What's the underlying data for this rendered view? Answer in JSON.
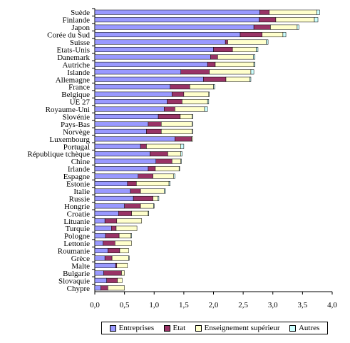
{
  "chart_data": {
    "type": "bar",
    "orientation": "horizontal",
    "stacked": true,
    "categories": [
      "Suède",
      "Finlande",
      "Japon",
      "Corée du Sud",
      "Suisse",
      "Etats-Unis",
      "Danemark",
      "Autriche",
      "Islande",
      "Allemagne",
      "France",
      "Belgique",
      "UE 27",
      "Royaume-Uni",
      "Slovénie",
      "Pays-Bas",
      "Norvège",
      "Luxembourg",
      "Portugal",
      "République tchèque",
      "Chine",
      "Irlande",
      "Espagne",
      "Estonie",
      "Italie",
      "Russie",
      "Hongrie",
      "Croatie",
      "Lituanie",
      "Turquie",
      "Pologne",
      "Lettonie",
      "Roumanie",
      "Grèce",
      "Malte",
      "Bulgarie",
      "Slovaquie",
      "Chypre"
    ],
    "series": [
      {
        "name": "Entreprises",
        "color": "#9999ff",
        "values": [
          2.78,
          2.77,
          2.68,
          2.45,
          2.2,
          2.0,
          1.95,
          1.9,
          1.45,
          1.83,
          1.27,
          1.3,
          1.22,
          1.17,
          1.07,
          0.9,
          0.87,
          1.35,
          0.77,
          0.93,
          1.03,
          0.9,
          0.73,
          0.55,
          0.6,
          0.65,
          0.5,
          0.4,
          0.17,
          0.28,
          0.18,
          0.14,
          0.22,
          0.17,
          0.35,
          0.15,
          0.2,
          0.1
        ]
      },
      {
        "name": "Etat",
        "color": "#993366",
        "values": [
          0.16,
          0.28,
          0.28,
          0.37,
          0.04,
          0.32,
          0.12,
          0.13,
          0.48,
          0.38,
          0.33,
          0.2,
          0.25,
          0.18,
          0.37,
          0.22,
          0.25,
          0.28,
          0.1,
          0.3,
          0.27,
          0.12,
          0.25,
          0.15,
          0.17,
          0.33,
          0.27,
          0.22,
          0.2,
          0.08,
          0.23,
          0.2,
          0.2,
          0.12,
          0.02,
          0.3,
          0.18,
          0.12
        ]
      },
      {
        "name": "Enseignement supérieur",
        "color": "#ffffcc",
        "values": [
          0.8,
          0.65,
          0.45,
          0.35,
          0.65,
          0.4,
          0.6,
          0.65,
          0.7,
          0.4,
          0.4,
          0.42,
          0.43,
          0.5,
          0.2,
          0.52,
          0.52,
          0.02,
          0.58,
          0.22,
          0.15,
          0.4,
          0.35,
          0.55,
          0.4,
          0.08,
          0.22,
          0.28,
          0.42,
          0.35,
          0.2,
          0.28,
          0.15,
          0.28,
          0.18,
          0.05,
          0.08,
          0.28
        ]
      },
      {
        "name": "Autres",
        "color": "#ccffff",
        "values": [
          0.05,
          0.06,
          0.03,
          0.05,
          0.03,
          0.03,
          0.03,
          0.02,
          0.05,
          0.02,
          0.02,
          0.01,
          0.02,
          0.05,
          0.01,
          0.01,
          0.01,
          0.0,
          0.05,
          0.02,
          0.01,
          0.01,
          0.02,
          0.02,
          0.02,
          0.02,
          0.01,
          0.01,
          0.0,
          0.0,
          0.01,
          0.0,
          0.0,
          0.01,
          0.0,
          0.0,
          0.0,
          0.0
        ]
      }
    ],
    "xlim": [
      0,
      4.0
    ],
    "xticks": [
      "0,0",
      "0,5",
      "1,0",
      "1,5",
      "2,0",
      "2,5",
      "3,0",
      "3,5",
      "4,0"
    ],
    "title": "",
    "xlabel": "",
    "ylabel": "",
    "grid": false,
    "legend_position": "bottom"
  }
}
